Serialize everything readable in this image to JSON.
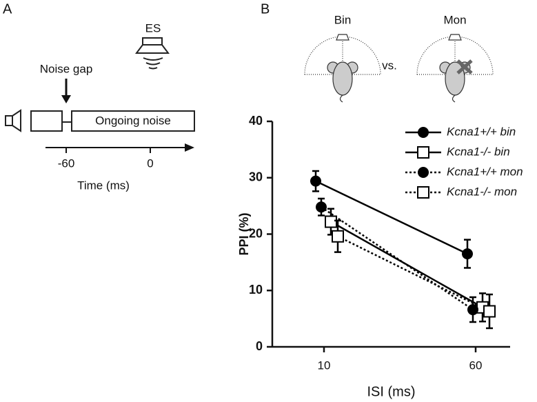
{
  "panel_a": {
    "label": "A",
    "speaker_label": "ES",
    "gap_label": "Noise gap",
    "noise_label": "Ongoing noise",
    "ticks": [
      "-60",
      "0"
    ],
    "axis_label": "Time (ms)"
  },
  "panel_b": {
    "label": "B",
    "left_label": "Bin",
    "middle_label": "vs.",
    "right_label": "Mon"
  },
  "chart_data": {
    "type": "line",
    "xlabel": "ISI (ms)",
    "ylabel": "PPI (%)",
    "categories": [
      "10",
      "60"
    ],
    "ylim": [
      0,
      40
    ],
    "yticks": [
      0,
      10,
      20,
      30,
      40
    ],
    "legend": "upper right",
    "series": [
      {
        "name": "Kcna1+/+ bin",
        "color": "#000000",
        "marker": "circle",
        "line_style": "solid",
        "values": [
          29.4,
          16.5
        ],
        "errors": [
          1.8,
          2.5
        ]
      },
      {
        "name": "Kcna1-/- bin",
        "color": "#000000",
        "marker": "square",
        "line_style": "solid",
        "values": [
          22.2,
          7.0
        ],
        "errors": [
          2.3,
          2.5
        ]
      },
      {
        "name": "Kcna1+/+ mon",
        "color": "#000000",
        "marker": "circle",
        "line_style": "dotted",
        "values": [
          24.8,
          6.6
        ],
        "errors": [
          1.5,
          2.2
        ]
      },
      {
        "name": "Kcna1-/- mon",
        "color": "#000000",
        "marker": "square",
        "line_style": "dotted",
        "values": [
          19.6,
          6.3
        ],
        "errors": [
          2.8,
          3.0
        ]
      }
    ]
  }
}
